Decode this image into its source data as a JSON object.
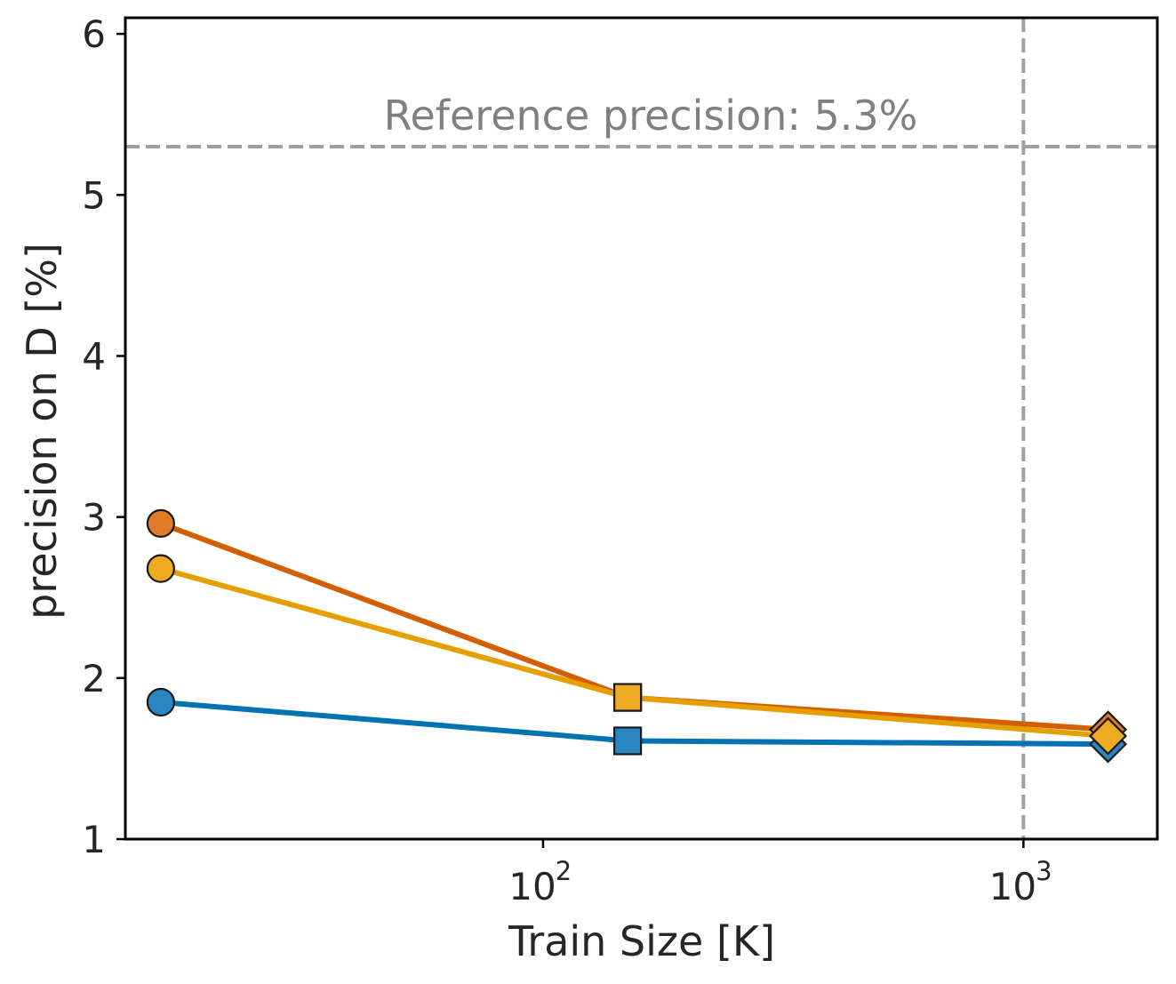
{
  "chart_data": {
    "type": "line",
    "title": "",
    "xlabel": "Train Size [K]",
    "ylabel": "precision on D [%]",
    "xscale": "log",
    "xlim": [
      13.5,
      1900
    ],
    "ylim": [
      1,
      6.1
    ],
    "grid": false,
    "y_ticks": [
      1,
      2,
      3,
      4,
      5,
      6
    ],
    "x_ticks": [
      {
        "value": 100,
        "base": "10",
        "exp": "2"
      },
      {
        "value": 1000,
        "base": "10",
        "exp": "3"
      }
    ],
    "reference_line": {
      "y": 5.3,
      "label": "Reference precision: 5.3%",
      "color": "#a0a0a0",
      "text_color": "#808080"
    },
    "vertical_line": {
      "x": 1000,
      "color": "#a0a0a0"
    },
    "x": [
      16,
      150,
      1500
    ],
    "markers": [
      "circle",
      "square",
      "diamond"
    ],
    "series": [
      {
        "name": "series-blue",
        "color": "#0173b2",
        "marker_color": "#2a86c3",
        "values": [
          1.85,
          1.61,
          1.59
        ]
      },
      {
        "name": "series-orange",
        "color": "#d55e00",
        "marker_color": "#e07b28",
        "values": [
          2.96,
          1.88,
          1.68
        ]
      },
      {
        "name": "series-yellow",
        "color": "#e69f00",
        "marker_color": "#eeaa22",
        "values": [
          2.68,
          1.88,
          1.64
        ]
      }
    ]
  }
}
